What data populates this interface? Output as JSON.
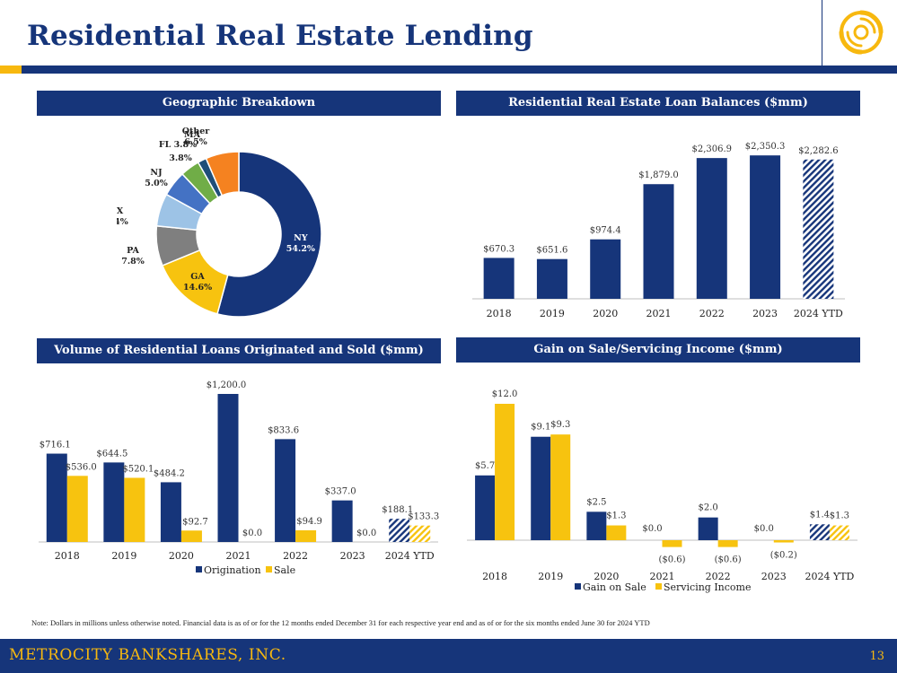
{
  "page": {
    "title": "Residential Real Estate Lending",
    "note": "Note: Dollars in millions unless otherwise noted. Financial data is as of or for the 12 months ended December 31 for each respective year end and as of or for the six months ended June 30 for 2024 YTD",
    "footer_company": "METROCITY BANKSHARES, INC.",
    "page_number": "13",
    "logo_icon": "swirl-logo-icon"
  },
  "colors": {
    "navy": "#16357a",
    "gold": "#f7b80f",
    "gray": "#7f7f7f",
    "light_blue": "#9dc3e6",
    "mid_blue": "#4472c4",
    "green": "#70ad47",
    "teal_navy": "#1f4e79",
    "orange": "#f58220"
  },
  "chart_data": [
    {
      "type": "pie",
      "title": "Geographic Breakdown",
      "slices": [
        {
          "label": "NY",
          "value": 54.2,
          "text": "54.2%",
          "color": "#16357a"
        },
        {
          "label": "GA",
          "value": 14.6,
          "text": "14.6%",
          "color": "#f7c30f"
        },
        {
          "label": "PA",
          "value": 7.8,
          "text": "7.8%",
          "color": "#7f7f7f"
        },
        {
          "label": "TX",
          "value": 6.4,
          "text": "6.4%",
          "color": "#9dc3e6"
        },
        {
          "label": "NJ",
          "value": 5.0,
          "text": "5.0%",
          "color": "#4472c4"
        },
        {
          "label": "FL",
          "value": 3.8,
          "text": "3.8%",
          "color": "#70ad47"
        },
        {
          "label": "MA",
          "value": 1.7,
          "text": "1.7%",
          "color": "#1f4e79"
        },
        {
          "label": "Other",
          "value": 6.5,
          "text": "6.5%",
          "color": "#f58220"
        }
      ]
    },
    {
      "type": "bar",
      "title": "Residential Real Estate Loan Balances ($mm)",
      "categories": [
        "2018",
        "2019",
        "2020",
        "2021",
        "2022",
        "2023",
        "2024 YTD"
      ],
      "values": [
        670.3,
        651.6,
        974.4,
        1879.0,
        2306.9,
        2350.3,
        2282.6
      ],
      "labels": [
        "$670.3",
        "$651.6",
        "$974.4",
        "$1,879.0",
        "$2,306.9",
        "$2,350.3",
        "$2,282.6"
      ],
      "hatched": [
        false,
        false,
        false,
        false,
        false,
        false,
        true
      ],
      "ylim": [
        0,
        2500
      ]
    },
    {
      "type": "bar",
      "title": "Volume of Residential Loans Originated and Sold ($mm)",
      "categories": [
        "2018",
        "2019",
        "2020",
        "2021",
        "2022",
        "2023",
        "2024 YTD"
      ],
      "series": [
        {
          "name": "Origination",
          "color": "#16357a",
          "values": [
            716.1,
            644.5,
            484.2,
            1200.0,
            833.6,
            337.0,
            188.1
          ],
          "labels": [
            "$716.1",
            "$644.5",
            "$484.2",
            "$1,200.0",
            "$833.6",
            "$337.0",
            "$188.1"
          ]
        },
        {
          "name": "Sale",
          "color": "#f7c30f",
          "values": [
            536.0,
            520.1,
            92.7,
            0.0,
            94.9,
            0.0,
            133.3
          ],
          "labels": [
            "$536.0",
            "$520.1",
            "$92.7",
            "$0.0",
            "$94.9",
            "$0.0",
            "$133.3"
          ]
        }
      ],
      "hatched_last": true,
      "ylim": [
        0,
        1200
      ]
    },
    {
      "type": "bar",
      "title": "Gain on Sale/Servicing Income ($mm)",
      "categories": [
        "2018",
        "2019",
        "2020",
        "2021",
        "2022",
        "2023",
        "2024 YTD"
      ],
      "series": [
        {
          "name": "Gain on Sale",
          "color": "#16357a",
          "values": [
            5.7,
            9.1,
            2.5,
            0.0,
            2.0,
            0.0,
            1.4
          ],
          "labels": [
            "$5.7",
            "$9.1",
            "$2.5",
            "$0.0",
            "$2.0",
            "$0.0",
            "$1.4"
          ]
        },
        {
          "name": "Servicing Income",
          "color": "#f7c30f",
          "values": [
            12.0,
            9.3,
            1.3,
            -0.6,
            -0.6,
            -0.2,
            1.3
          ],
          "labels": [
            "$12.0",
            "$9.3",
            "$1.3",
            "($0.6)",
            "($0.6)",
            "($0.2)",
            "$1.3"
          ]
        }
      ],
      "hatched_last": true,
      "ylim": [
        -0.6,
        12
      ]
    }
  ]
}
